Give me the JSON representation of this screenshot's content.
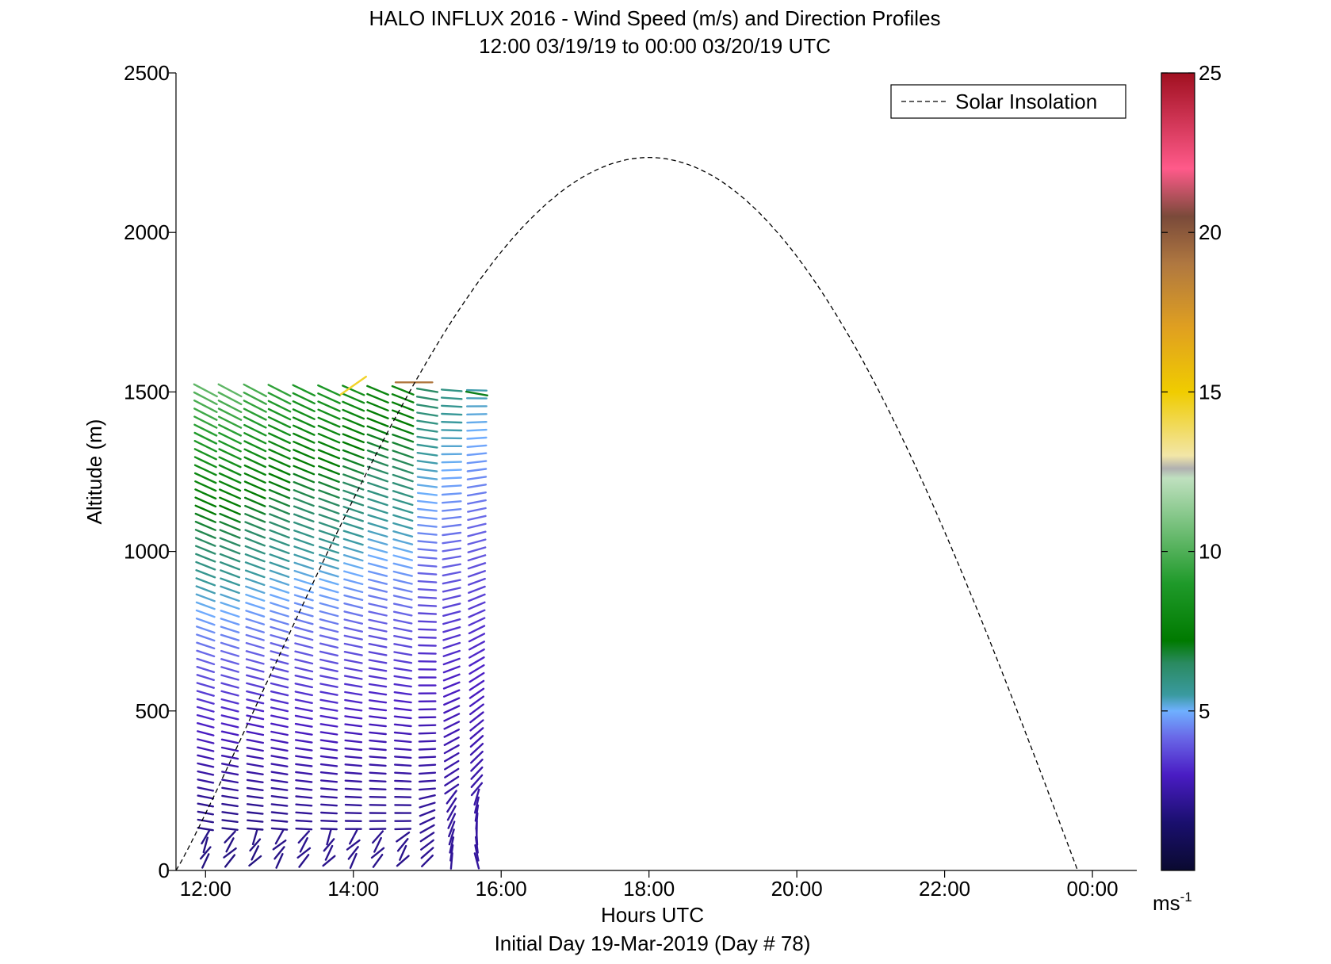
{
  "chart_data": {
    "type": "scatter",
    "subtype": "wind-barb-profile",
    "title": "HALO INFLUX 2016 - Wind Speed (m/s) and Direction Profiles",
    "subtitle": "12:00 03/19/19 to 00:00 03/20/19  UTC",
    "xlabel": "Hours UTC",
    "xlabel2": "Initial Day 19-Mar-2019 (Day # 78)",
    "ylabel": "Altitude (m)",
    "xlim": [
      11.6,
      24.6
    ],
    "ylim": [
      0,
      2500
    ],
    "x_ticks": [
      {
        "value": 12,
        "label": "12:00"
      },
      {
        "value": 14,
        "label": "14:00"
      },
      {
        "value": 16,
        "label": "16:00"
      },
      {
        "value": 18,
        "label": "18:00"
      },
      {
        "value": 20,
        "label": "20:00"
      },
      {
        "value": 22,
        "label": "22:00"
      },
      {
        "value": 24,
        "label": "00:00"
      }
    ],
    "y_ticks": [
      {
        "value": 0,
        "label": "0"
      },
      {
        "value": 500,
        "label": "500"
      },
      {
        "value": 1000,
        "label": "1000"
      },
      {
        "value": 1500,
        "label": "1500"
      },
      {
        "value": 2000,
        "label": "2000"
      },
      {
        "value": 2500,
        "label": "2500"
      }
    ],
    "legend": {
      "position": "top-right",
      "entries": [
        {
          "label": "Solar Insolation",
          "style": "dashed"
        }
      ]
    },
    "colorbar": {
      "range": [
        0,
        25
      ],
      "ticks": [
        {
          "value": 5,
          "label": "5"
        },
        {
          "value": 10,
          "label": "10"
        },
        {
          "value": 15,
          "label": "15"
        },
        {
          "value": 20,
          "label": "20"
        },
        {
          "value": 25,
          "label": "25"
        }
      ],
      "unit_label": "ms",
      "unit_exponent": "-1",
      "stops": [
        {
          "v": 0,
          "color": "#0a0a30"
        },
        {
          "v": 1.5,
          "color": "#1a0f6e"
        },
        {
          "v": 3,
          "color": "#4a1cc4"
        },
        {
          "v": 4.2,
          "color": "#6a6ae8"
        },
        {
          "v": 5,
          "color": "#6fb0ff"
        },
        {
          "v": 5.5,
          "color": "#3a9aa0"
        },
        {
          "v": 6.5,
          "color": "#2a8a60"
        },
        {
          "v": 7.2,
          "color": "#007a00"
        },
        {
          "v": 9,
          "color": "#1f9a2a"
        },
        {
          "v": 12.3,
          "color": "#bfe0bf"
        },
        {
          "v": 12.6,
          "color": "#b0b0b0"
        },
        {
          "v": 13,
          "color": "#f2e6a8"
        },
        {
          "v": 15,
          "color": "#f0cc00"
        },
        {
          "v": 17,
          "color": "#e0a020"
        },
        {
          "v": 19,
          "color": "#b07840"
        },
        {
          "v": 20.5,
          "color": "#7a4a3a"
        },
        {
          "v": 22,
          "color": "#ff5a8a"
        },
        {
          "v": 25,
          "color": "#a01020"
        }
      ]
    },
    "solar_insolation": {
      "sunrise_hours": 11.6,
      "sunset_hours": 23.8,
      "peak_hours": 18.0,
      "peak_altitude_equiv": 2235,
      "min_altitude_equiv": 0
    },
    "wind_profiles": {
      "columns": [
        {
          "time": 12.0,
          "top": 1525,
          "low_speed": 1.8,
          "high_speed": 10.5,
          "low_dir": 95,
          "high_dir": 118
        },
        {
          "time": 12.33,
          "top": 1525,
          "low_speed": 1.8,
          "high_speed": 10.5,
          "low_dir": 92,
          "high_dir": 118
        },
        {
          "time": 12.67,
          "top": 1525,
          "low_speed": 1.8,
          "high_speed": 10.0,
          "low_dir": 90,
          "high_dir": 118
        },
        {
          "time": 13.0,
          "top": 1525,
          "low_speed": 1.9,
          "high_speed": 9.5,
          "low_dir": 90,
          "high_dir": 117
        },
        {
          "time": 13.33,
          "top": 1525,
          "low_speed": 2.0,
          "high_speed": 9.0,
          "low_dir": 88,
          "high_dir": 116
        },
        {
          "time": 13.67,
          "top": 1525,
          "low_speed": 2.0,
          "high_speed": 9.0,
          "low_dir": 87,
          "high_dir": 115
        },
        {
          "time": 14.0,
          "top": 1525,
          "low_speed": 2.0,
          "high_speed": 8.5,
          "low_dir": 85,
          "high_dir": 114
        },
        {
          "time": 14.33,
          "top": 1525,
          "low_speed": 2.0,
          "high_speed": 8.0,
          "low_dir": 84,
          "high_dir": 113
        },
        {
          "time": 14.67,
          "top": 1525,
          "low_speed": 2.0,
          "high_speed": 8.0,
          "low_dir": 84,
          "high_dir": 112
        },
        {
          "time": 15.0,
          "top": 1525,
          "low_speed": 2.1,
          "high_speed": 6.5,
          "low_dir": 80,
          "high_dir": 100
        },
        {
          "time": 15.33,
          "top": 1525,
          "low_speed": 2.2,
          "high_speed": 6.0,
          "low_dir": 40,
          "high_dir": 95
        },
        {
          "time": 15.67,
          "top": 1525,
          "low_speed": 2.3,
          "high_speed": 5.5,
          "low_dir": 20,
          "high_dir": 92
        }
      ],
      "top_special": [
        {
          "time": 14.0,
          "alt": 1520,
          "speed": 14.5,
          "dir": 55
        },
        {
          "time": 14.82,
          "alt": 1530,
          "speed": 19.0,
          "dir": 90
        },
        {
          "time": 15.67,
          "alt": 1495,
          "speed": 7.0,
          "dir": 100
        }
      ]
    }
  }
}
